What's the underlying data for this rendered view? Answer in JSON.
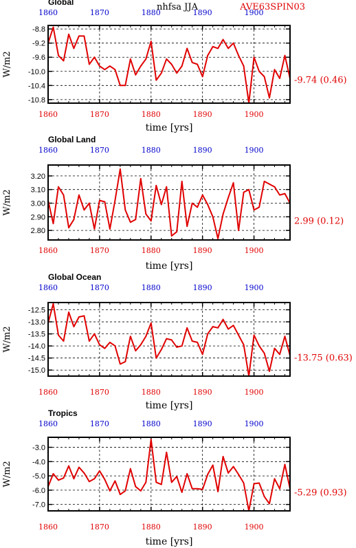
{
  "header": {
    "center_text": "nhfsa JJA",
    "right_text": "AVE63SPIN03"
  },
  "colors": {
    "series": "#e00000",
    "top_tick": "#0000cc",
    "bottom_tick": "#e00000"
  },
  "chart_data": [
    {
      "type": "line",
      "title": "Global",
      "xlabel": "time [yrs]",
      "ylabel": "W/m2",
      "xlim": [
        1860,
        1907
      ],
      "ylim": [
        -10.9,
        -8.7
      ],
      "xticks": [
        1860,
        1870,
        1880,
        1890,
        1900
      ],
      "yticks": [
        -8.8,
        -9.2,
        -9.6,
        -10.0,
        -10.4,
        -10.8
      ],
      "ytick_labels": [
        "-8.8",
        "-9.2",
        "-9.6",
        "-10.0",
        "-10.4",
        "-10.8"
      ],
      "annotation": "-9.74 (0.46)",
      "grid": true,
      "x": [
        1860,
        1861,
        1862,
        1863,
        1864,
        1865,
        1866,
        1867,
        1868,
        1869,
        1870,
        1871,
        1872,
        1873,
        1874,
        1875,
        1876,
        1877,
        1878,
        1879,
        1880,
        1881,
        1882,
        1883,
        1884,
        1885,
        1886,
        1887,
        1888,
        1889,
        1890,
        1891,
        1892,
        1893,
        1894,
        1895,
        1896,
        1897,
        1898,
        1899,
        1900,
        1901,
        1902,
        1903,
        1904,
        1905,
        1906,
        1907
      ],
      "values": [
        -9.2,
        -8.75,
        -9.55,
        -9.7,
        -8.95,
        -9.35,
        -9.0,
        -9.0,
        -9.8,
        -9.6,
        -9.85,
        -9.95,
        -9.85,
        -9.95,
        -10.4,
        -10.4,
        -9.65,
        -10.1,
        -9.85,
        -9.65,
        -9.15,
        -10.25,
        -10.05,
        -9.65,
        -9.8,
        -10.05,
        -9.85,
        -9.35,
        -9.75,
        -9.8,
        -10.15,
        -9.55,
        -9.3,
        -9.35,
        -9.1,
        -9.35,
        -9.2,
        -9.55,
        -9.85,
        -10.9,
        -9.6,
        -10.0,
        -10.15,
        -10.75,
        -9.95,
        -10.2,
        -9.55,
        -10.2
      ]
    },
    {
      "type": "line",
      "title": "Global Land",
      "xlabel": "time [yrs]",
      "ylabel": "W/m2",
      "xlim": [
        1860,
        1907
      ],
      "ylim": [
        2.73,
        3.28
      ],
      "xticks": [
        1860,
        1870,
        1880,
        1890,
        1900
      ],
      "yticks": [
        3.2,
        3.1,
        3.0,
        2.9,
        2.8
      ],
      "ytick_labels": [
        "3.20",
        "3.10",
        "3.00",
        "2.90",
        "2.80"
      ],
      "annotation": "2.99 (0.12)",
      "grid": true,
      "x": [
        1860,
        1861,
        1862,
        1863,
        1864,
        1865,
        1866,
        1867,
        1868,
        1869,
        1870,
        1871,
        1872,
        1873,
        1874,
        1875,
        1876,
        1877,
        1878,
        1879,
        1880,
        1881,
        1882,
        1883,
        1884,
        1885,
        1886,
        1887,
        1888,
        1889,
        1890,
        1891,
        1892,
        1893,
        1894,
        1895,
        1896,
        1897,
        1898,
        1899,
        1900,
        1901,
        1902,
        1903,
        1904,
        1905,
        1906,
        1907
      ],
      "values": [
        3.02,
        2.85,
        3.12,
        3.06,
        2.82,
        2.88,
        3.06,
        2.95,
        3.0,
        2.81,
        3.02,
        3.01,
        2.81,
        3.02,
        3.25,
        2.95,
        2.86,
        2.88,
        3.18,
        2.92,
        2.87,
        3.13,
        2.99,
        3.12,
        2.76,
        2.79,
        3.16,
        2.83,
        3.0,
        2.97,
        3.06,
        2.99,
        2.9,
        2.74,
        2.92,
        3.04,
        3.15,
        2.8,
        3.08,
        3.1,
        2.95,
        2.97,
        3.16,
        3.14,
        3.12,
        3.06,
        3.07,
        3.0
      ]
    },
    {
      "type": "line",
      "title": "Global Ocean",
      "xlabel": "time [yrs]",
      "ylabel": "W/m2",
      "xlim": [
        1860,
        1907
      ],
      "ylim": [
        -15.25,
        -12.2
      ],
      "xticks": [
        1860,
        1870,
        1880,
        1890,
        1900
      ],
      "yticks": [
        -12.5,
        -13.0,
        -13.5,
        -14.0,
        -14.5,
        -15.0
      ],
      "ytick_labels": [
        "-12.5",
        "-13.0",
        "-13.5",
        "-14.0",
        "-14.5",
        "-15.0"
      ],
      "annotation": "-13.75 (0.63)",
      "grid": true,
      "x": [
        1860,
        1861,
        1862,
        1863,
        1864,
        1865,
        1866,
        1867,
        1868,
        1869,
        1870,
        1871,
        1872,
        1873,
        1874,
        1875,
        1876,
        1877,
        1878,
        1879,
        1880,
        1881,
        1882,
        1883,
        1884,
        1885,
        1886,
        1887,
        1888,
        1889,
        1890,
        1891,
        1892,
        1893,
        1894,
        1895,
        1896,
        1897,
        1898,
        1899,
        1900,
        1901,
        1902,
        1903,
        1904,
        1905,
        1906,
        1907
      ],
      "values": [
        -13.05,
        -12.25,
        -13.55,
        -13.8,
        -12.6,
        -13.2,
        -12.8,
        -12.75,
        -13.8,
        -13.5,
        -13.95,
        -14.1,
        -13.85,
        -14.0,
        -14.75,
        -14.65,
        -13.6,
        -14.2,
        -13.95,
        -13.6,
        -13.05,
        -14.5,
        -14.15,
        -13.7,
        -13.75,
        -14.05,
        -14.0,
        -13.25,
        -13.8,
        -13.85,
        -14.35,
        -13.5,
        -13.2,
        -13.25,
        -12.9,
        -13.3,
        -13.15,
        -13.55,
        -13.95,
        -15.25,
        -13.55,
        -14.0,
        -14.3,
        -15.05,
        -14.1,
        -14.35,
        -13.6,
        -14.4
      ]
    },
    {
      "type": "line",
      "title": "Tropics",
      "xlabel": "time [yrs]",
      "ylabel": "W/m2",
      "xlim": [
        1860,
        1907
      ],
      "ylim": [
        -7.45,
        -2.3
      ],
      "xticks": [
        1860,
        1870,
        1880,
        1890,
        1900
      ],
      "yticks": [
        -3.0,
        -4.0,
        -5.0,
        -6.0,
        -7.0
      ],
      "ytick_labels": [
        "-3.0",
        "-4.0",
        "-5.0",
        "-6.0",
        "-7.0"
      ],
      "annotation": "-5.29 (0.93)",
      "grid": true,
      "x": [
        1860,
        1861,
        1862,
        1863,
        1864,
        1865,
        1866,
        1867,
        1868,
        1869,
        1870,
        1871,
        1872,
        1873,
        1874,
        1875,
        1876,
        1877,
        1878,
        1879,
        1880,
        1881,
        1882,
        1883,
        1884,
        1885,
        1886,
        1887,
        1888,
        1889,
        1890,
        1891,
        1892,
        1893,
        1894,
        1895,
        1896,
        1897,
        1898,
        1899,
        1900,
        1901,
        1902,
        1903,
        1904,
        1905,
        1906,
        1907
      ],
      "values": [
        -5.75,
        -4.85,
        -5.3,
        -5.15,
        -4.3,
        -5.2,
        -4.4,
        -4.8,
        -5.4,
        -5.2,
        -4.65,
        -5.25,
        -6.05,
        -5.35,
        -6.3,
        -6.05,
        -4.5,
        -5.75,
        -6.05,
        -5.45,
        -2.45,
        -5.45,
        -5.6,
        -3.35,
        -5.45,
        -5.05,
        -6.15,
        -4.85,
        -5.9,
        -5.9,
        -5.95,
        -4.9,
        -4.25,
        -6.1,
        -3.65,
        -4.8,
        -4.35,
        -4.9,
        -5.5,
        -7.45,
        -5.55,
        -5.5,
        -6.45,
        -6.95,
        -5.2,
        -5.9,
        -4.2,
        -5.9
      ]
    }
  ]
}
